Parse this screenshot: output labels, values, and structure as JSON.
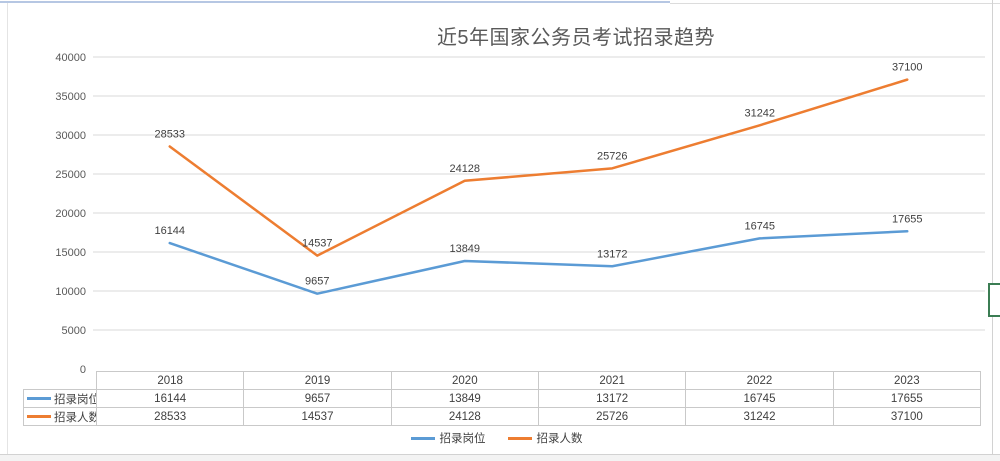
{
  "app": {
    "selection_border_color": "#b6c7e3",
    "active_cell_border_color": "#3b7d53",
    "frame_border_color": "#d2d2d2"
  },
  "chart_data": {
    "type": "line",
    "title": "近5年国家公务员考试招录趋势",
    "categories": [
      "2018",
      "2019",
      "2020",
      "2021",
      "2022",
      "2023"
    ],
    "series": [
      {
        "name": "招录岗位",
        "color": "#5B9BD5",
        "values": [
          16144,
          9657,
          13849,
          13172,
          16745,
          17655
        ]
      },
      {
        "name": "招录人数",
        "color": "#ED7D31",
        "values": [
          28533,
          14537,
          24128,
          25726,
          31242,
          37100
        ]
      }
    ],
    "xlabel": "",
    "ylabel": "",
    "ylim": [
      0,
      40000
    ],
    "ytick_step": 5000,
    "grid": true,
    "data_labels": true,
    "data_table_with_legend_keys": true,
    "legend_position": "bottom",
    "gridline_color": "#d9d9d9",
    "tick_color": "#595959",
    "label_color": "#404040",
    "title_color": "#595959",
    "table_border_color": "#c9c9c9"
  }
}
